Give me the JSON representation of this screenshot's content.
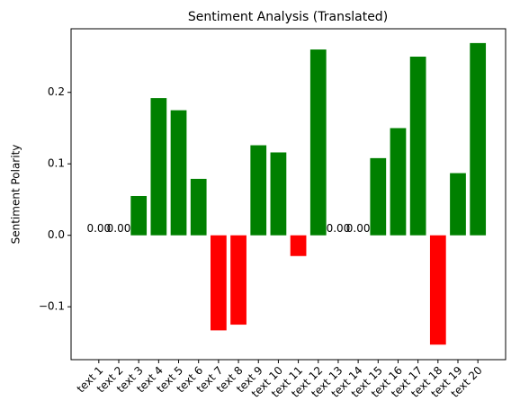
{
  "chart_data": {
    "type": "bar",
    "title": "Sentiment Analysis (Translated)",
    "y_label": "Sentiment Polarity",
    "categories": [
      "text 1",
      "text 2",
      "text 3",
      "text 4",
      "text 5",
      "text 6",
      "text 7",
      "text 8",
      "text 9",
      "text 10",
      "text 11",
      "text 12",
      "text 13",
      "text 14",
      "text 15",
      "text 16",
      "text 17",
      "text 18",
      "text 19",
      "text 20"
    ],
    "values": [
      0,
      0,
      0.055,
      0.192,
      0.175,
      0.079,
      -0.133,
      -0.125,
      0.126,
      0.116,
      -0.029,
      0.26,
      0,
      0,
      0.108,
      0.15,
      0.25,
      -0.153,
      0.087,
      0.269
    ],
    "value_labels": [
      "0.00",
      "0.00",
      null,
      null,
      null,
      null,
      null,
      null,
      null,
      null,
      null,
      null,
      "0.00",
      "0.00",
      null,
      null,
      null,
      null,
      null,
      null
    ],
    "colors": [
      "green",
      "green",
      "green",
      "green",
      "green",
      "green",
      "red",
      "red",
      "green",
      "green",
      "red",
      "green",
      "green",
      "green",
      "green",
      "green",
      "green",
      "red",
      "green",
      "green"
    ],
    "ylim": [
      -0.174,
      0.289
    ],
    "yticks": [
      {
        "value": -0.1,
        "label": "−0.1"
      },
      {
        "value": 0.0,
        "label": "0.0"
      },
      {
        "value": 0.1,
        "label": "0.1"
      },
      {
        "value": 0.2,
        "label": "0.2"
      }
    ],
    "grid": false
  }
}
